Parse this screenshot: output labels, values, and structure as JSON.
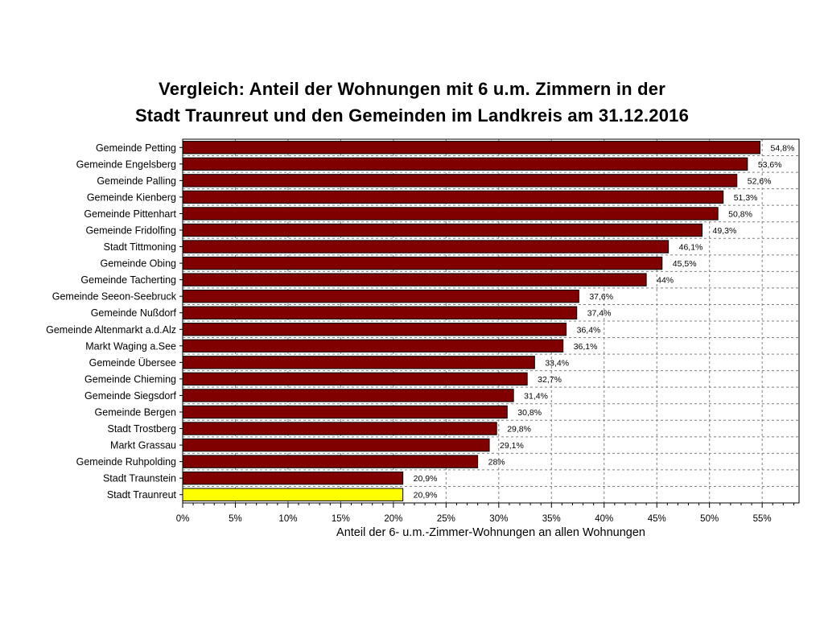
{
  "title": {
    "line1": "Vergleich: Anteil der Wohnungen mit 6 u.m. Zimmern in der",
    "line2": "Stadt Traunreut und den Gemeinden im Landkreis am 31.12.2016"
  },
  "colors": {
    "bar": "#800000",
    "highlight": "#ffff00",
    "grid": "#808080",
    "axis": "#000000"
  },
  "chart_data": {
    "type": "bar",
    "orientation": "horizontal",
    "xlabel": "Anteil der 6- u.m.-Zimmer-Wohnungen an allen Wohnungen",
    "xlim": [
      0,
      58.5
    ],
    "xticks": [
      0,
      5,
      10,
      15,
      20,
      25,
      30,
      35,
      40,
      45,
      50,
      55
    ],
    "xtick_labels": [
      "0%",
      "5%",
      "10%",
      "15%",
      "20%",
      "25%",
      "30%",
      "35%",
      "40%",
      "45%",
      "50%",
      "55%"
    ],
    "grid": true,
    "highlight": "Stadt Traunreut",
    "categories": [
      "Gemeinde Petting",
      "Gemeinde Engelsberg",
      "Gemeinde Palling",
      "Gemeinde Kienberg",
      "Gemeinde Pittenhart",
      "Gemeinde Fridolfing",
      "Stadt Tittmoning",
      "Gemeinde Obing",
      "Gemeinde Tacherting",
      "Gemeinde Seeon-Seebruck",
      "Gemeinde Nußdorf",
      "Gemeinde Altenmarkt a.d.Alz",
      "Markt Waging a.See",
      "Gemeinde Übersee",
      "Gemeinde Chieming",
      "Gemeinde Siegsdorf",
      "Gemeinde Bergen",
      "Stadt Trostberg",
      "Markt Grassau",
      "Gemeinde Ruhpolding",
      "Stadt Traunstein",
      "Stadt Traunreut"
    ],
    "values": [
      54.8,
      53.6,
      52.6,
      51.3,
      50.8,
      49.3,
      46.1,
      45.5,
      44,
      37.6,
      37.4,
      36.4,
      36.1,
      33.4,
      32.7,
      31.4,
      30.8,
      29.8,
      29.1,
      28,
      20.9,
      20.9
    ],
    "value_labels": [
      "54,8%",
      "53,6%",
      "52,6%",
      "51,3%",
      "50,8%",
      "49,3%",
      "46,1%",
      "45,5%",
      "44%",
      "37,6%",
      "37,4%",
      "36,4%",
      "36,1%",
      "33,4%",
      "32,7%",
      "31,4%",
      "30,8%",
      "29,8%",
      "29,1%",
      "28%",
      "20,9%",
      "20,9%"
    ]
  }
}
